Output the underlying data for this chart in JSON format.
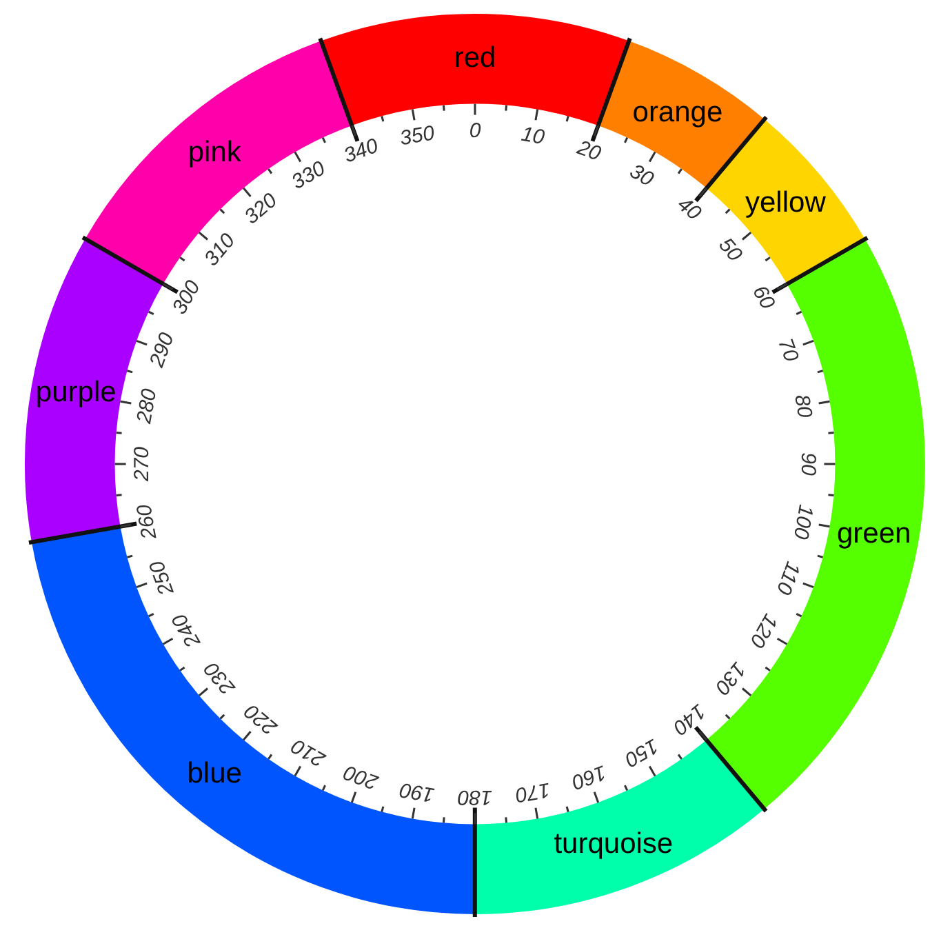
{
  "chart_data": {
    "type": "donut",
    "categories": [
      "red",
      "orange",
      "yellow",
      "green",
      "turquoise",
      "blue",
      "purple",
      "pink"
    ],
    "values": [
      11.11,
      5.56,
      5.56,
      22.22,
      11.11,
      22.22,
      11.11,
      11.11
    ],
    "colors": [
      "#ff0000",
      "#ff8000",
      "#ffd500",
      "#55ff00",
      "#00ffaa",
      "#0055ff",
      "#aa00ff",
      "#ff00aa"
    ],
    "annotations": [
      "0",
      "10",
      "20",
      "30",
      "40",
      "50",
      "60",
      "70",
      "80",
      "90",
      "100",
      "110",
      "120",
      "130",
      "140",
      "150",
      "160",
      "170",
      "180",
      "190",
      "200",
      "210",
      "220",
      "230",
      "240",
      "250",
      "260",
      "270",
      "280",
      "290",
      "300",
      "310",
      "320",
      "330",
      "340",
      "350"
    ]
  }
}
